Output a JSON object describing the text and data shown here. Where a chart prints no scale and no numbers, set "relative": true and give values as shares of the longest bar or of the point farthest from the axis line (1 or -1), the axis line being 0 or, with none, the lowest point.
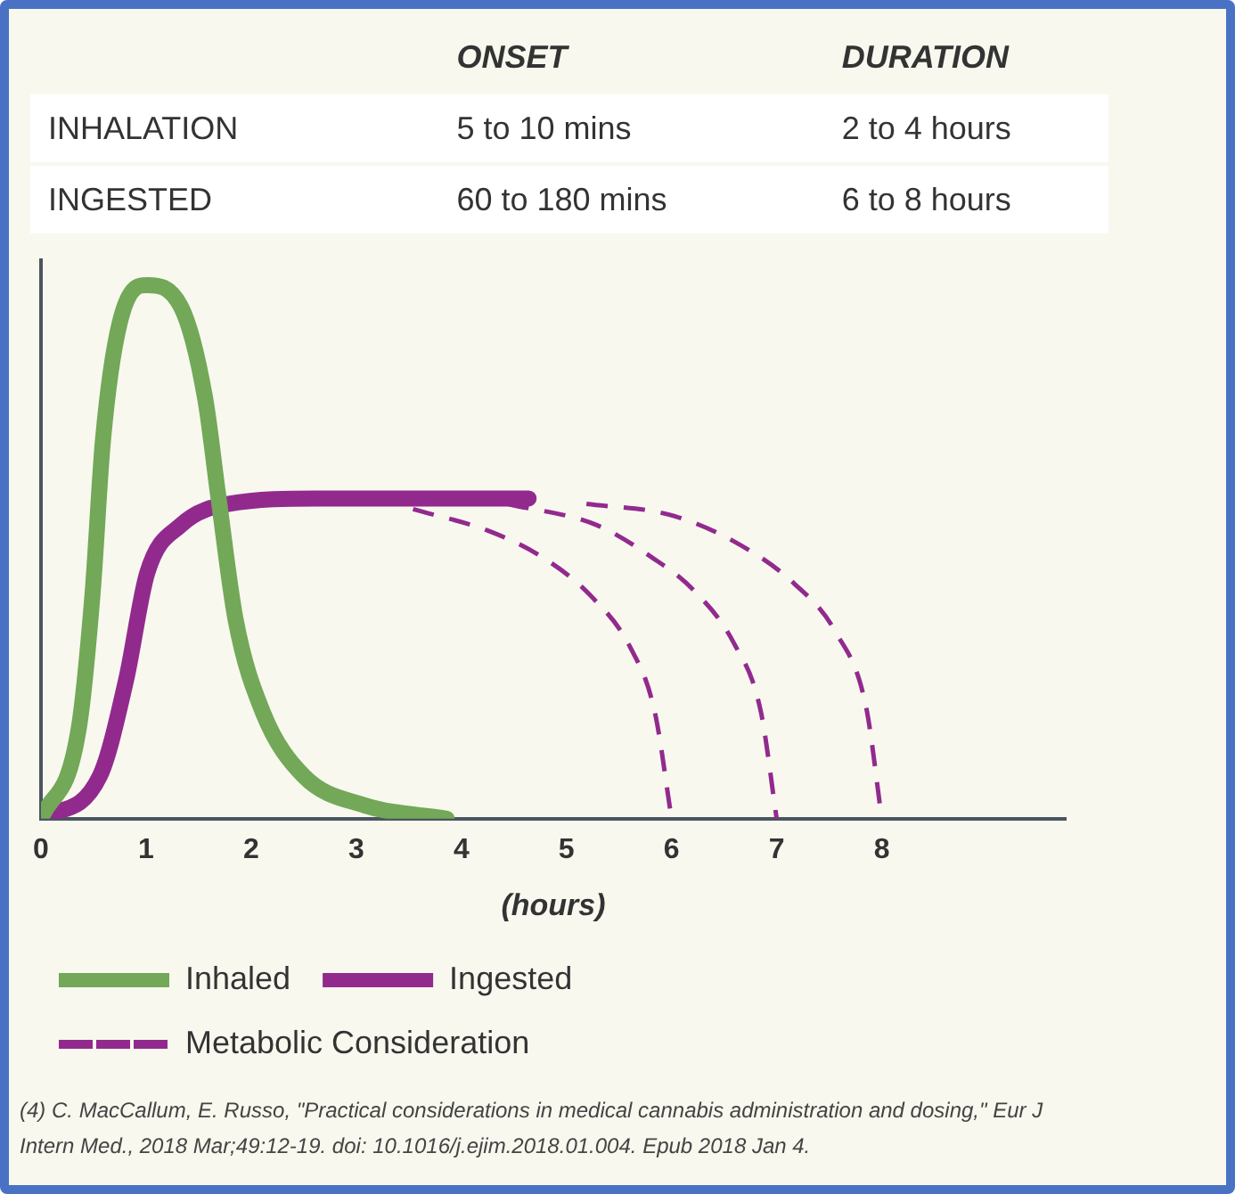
{
  "chart_data": {
    "type": "line",
    "relative": true,
    "xlabel": "(hours)",
    "xlim": [
      0,
      9.75
    ],
    "xticks": [
      0,
      1,
      2,
      3,
      4,
      5,
      6,
      7,
      8
    ],
    "tick_labels": "x",
    "grid": false,
    "legend": "bottom",
    "marker": "none",
    "annotations": [
      "ONSET",
      "DURATION",
      "INHALATION",
      "5 to 10 mins",
      "2 to 4 hours",
      "INGESTED",
      "60 to 180 mins",
      "6 to 8  hours",
      "(4) C. MacCallum, E. Russo, \"Practical considerations in medical cannabis administration and dosing,\" Eur J Intern Med., 2018 Mar;49:12-19. doi: 10.1016/j.ejim.2018.01.004. Epub 2018 Jan 4."
    ],
    "series": [
      {
        "name": "Inhaled",
        "color": "#72a857",
        "line_style": "solid",
        "x": [
          0,
          0.36,
          0.49,
          0.59,
          0.75,
          1.01,
          1.33,
          1.56,
          1.69,
          1.85,
          2.11,
          2.5,
          3.08,
          3.86
        ],
        "values": [
          0,
          0.17,
          0.42,
          0.71,
          0.93,
          1,
          0.96,
          0.79,
          0.6,
          0.375,
          0.2,
          0.08,
          0.025,
          0
        ]
      },
      {
        "name": "Ingested",
        "color": "#922a8e",
        "line_style": "solid",
        "x": [
          0,
          0.56,
          0.81,
          1.01,
          1.33,
          1.79,
          2.63,
          3.6,
          4.64
        ],
        "values": [
          0,
          0.08,
          0.26,
          0.46,
          0.55,
          0.59,
          0.6,
          0.6,
          0.6
        ]
      },
      {
        "name": "Metabolic Consideration",
        "color": "#922a8e",
        "line_style": "dashed",
        "x": [
          3.54,
          4.25,
          4.77,
          5.22,
          5.61,
          5.84,
          6
        ],
        "values": [
          0.58,
          0.54,
          0.49,
          0.42,
          0.32,
          0.2,
          0
        ]
      },
      {
        "color": "#922a8e",
        "line_style": "dashed",
        "x": [
          4.44,
          5.29,
          5.81,
          6.2,
          6.59,
          6.85,
          7
        ],
        "values": [
          0.59,
          0.55,
          0.49,
          0.43,
          0.33,
          0.2,
          0
        ]
      },
      {
        "color": "#922a8e",
        "line_style": "dashed",
        "x": [
          5.19,
          5.97,
          6.59,
          7.17,
          7.56,
          7.85,
          8
        ],
        "values": [
          0.59,
          0.57,
          0.52,
          0.44,
          0.35,
          0.21,
          0
        ]
      }
    ]
  }
}
